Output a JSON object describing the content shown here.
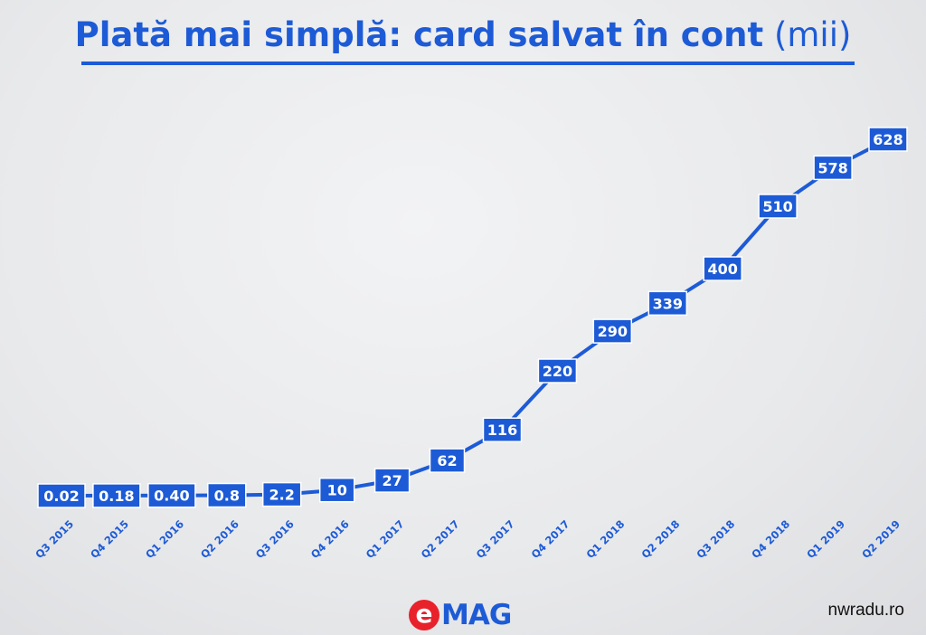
{
  "slide": {
    "title_main": "Plată mai simplă: card salvat în cont",
    "title_unit": "(mii)",
    "logo": {
      "e": "e",
      "rest": "MAG"
    },
    "watermark": "nwradu.ro"
  },
  "colors": {
    "accent": "#1d5bd6",
    "label_box": "#1d5bd6",
    "label_text": "#ffffff",
    "logo_red": "#e8212b"
  },
  "chart_data": {
    "type": "line",
    "title": "Plată mai simplă: card salvat în cont (mii)",
    "categories": [
      "Q3 2015",
      "Q4 2015",
      "Q1 2016",
      "Q2 2016",
      "Q3 2016",
      "Q4 2016",
      "Q1 2017",
      "Q2 2017",
      "Q3 2017",
      "Q4 2017",
      "Q1 2018",
      "Q2 2018",
      "Q3 2018",
      "Q4 2018",
      "Q1 2019",
      "Q2 2019"
    ],
    "values": [
      0.02,
      0.18,
      0.4,
      0.8,
      2.2,
      10,
      27,
      62,
      116,
      220,
      290,
      339,
      400,
      510,
      578,
      628
    ],
    "value_labels": [
      "0.02",
      "0.18",
      "0.40",
      "0.8",
      "2.2",
      "10",
      "27",
      "62",
      "116",
      "220",
      "290",
      "339",
      "400",
      "510",
      "578",
      "628"
    ],
    "ylim": [
      0,
      628
    ],
    "grid": false,
    "legend": "none"
  }
}
